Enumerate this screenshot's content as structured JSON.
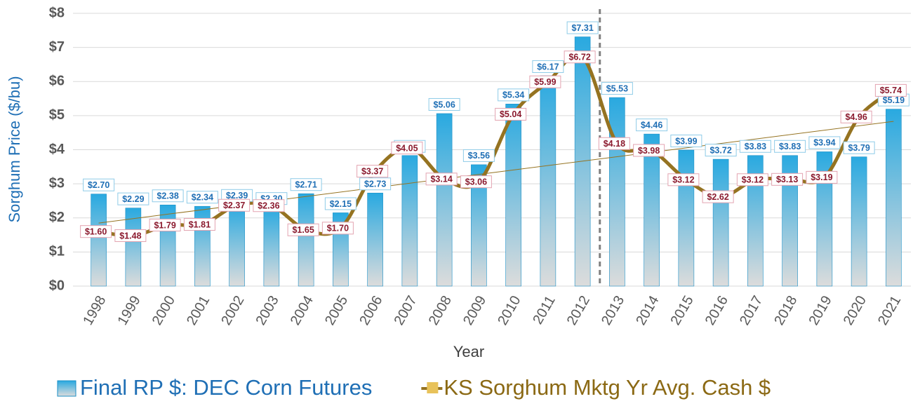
{
  "chart_data": {
    "type": "bar_line",
    "x_label": "Year",
    "y_label": "Sorghum Price ($/bu)",
    "categories": [
      "1998",
      "1999",
      "2000",
      "2001",
      "2002",
      "2003",
      "2004",
      "2005",
      "2006",
      "2007",
      "2008",
      "2009",
      "2010",
      "2011",
      "2012",
      "2013",
      "2014",
      "2015",
      "2016",
      "2017",
      "2018",
      "2019",
      "2020",
      "2021"
    ],
    "series": [
      {
        "name": "Final RP $: DEC Corn Futures",
        "type": "bar",
        "color": "#29a9e0",
        "values": [
          2.7,
          2.29,
          2.38,
          2.34,
          2.39,
          2.3,
          2.71,
          2.15,
          2.73,
          3.83,
          5.06,
          3.56,
          5.34,
          6.17,
          7.31,
          5.53,
          4.46,
          3.99,
          3.72,
          3.83,
          3.83,
          3.94,
          3.79,
          5.19
        ],
        "value_labels": [
          "$2.70",
          "$2.29",
          "$2.38",
          "$2.34",
          "$2.39",
          "$2.30",
          "$2.71",
          "$2.15",
          "$2.73",
          "$3.83",
          "$5.06",
          "$3.56",
          "$5.34",
          "$6.17",
          "$7.31",
          "$5.53",
          "$4.46",
          "$3.99",
          "$3.72",
          "$3.83",
          "$3.83",
          "$3.94",
          "$3.79",
          "$5.19"
        ]
      },
      {
        "name": "KS Sorghum Mktg Yr Avg. Cash $",
        "type": "line",
        "color": "#957321",
        "smooth": true,
        "trendline": true,
        "values": [
          1.6,
          1.48,
          1.79,
          1.81,
          2.37,
          2.36,
          1.65,
          1.7,
          3.37,
          4.05,
          3.14,
          3.06,
          5.04,
          5.99,
          6.72,
          4.18,
          3.98,
          3.12,
          2.62,
          3.12,
          3.13,
          3.19,
          4.96,
          5.74
        ],
        "value_labels": [
          "$1.60",
          "$1.48",
          "$1.79",
          "$1.81",
          "$2.37",
          "$2.36",
          "$1.65",
          "$1.70",
          "$3.37",
          "$4.05",
          "$3.14",
          "$3.06",
          "$5.04",
          "$5.99",
          "$6.72",
          "$4.18",
          "$3.98",
          "$3.12",
          "$2.62",
          "$3.12",
          "$3.13",
          "$3.19",
          "$4.96",
          "$5.74"
        ]
      }
    ],
    "divider_after": "2012",
    "ylim": [
      0,
      8
    ],
    "yticks": [
      {
        "value": 0,
        "label": "$0"
      },
      {
        "value": 1,
        "label": "$1"
      },
      {
        "value": 2,
        "label": "$2"
      },
      {
        "value": 3,
        "label": "$3"
      },
      {
        "value": 4,
        "label": "$4"
      },
      {
        "value": 5,
        "label": "$5"
      },
      {
        "value": 6,
        "label": "$6"
      },
      {
        "value": 7,
        "label": "$7"
      },
      {
        "value": 8,
        "label": "$8"
      }
    ],
    "grid": true,
    "legend": "bottom"
  }
}
